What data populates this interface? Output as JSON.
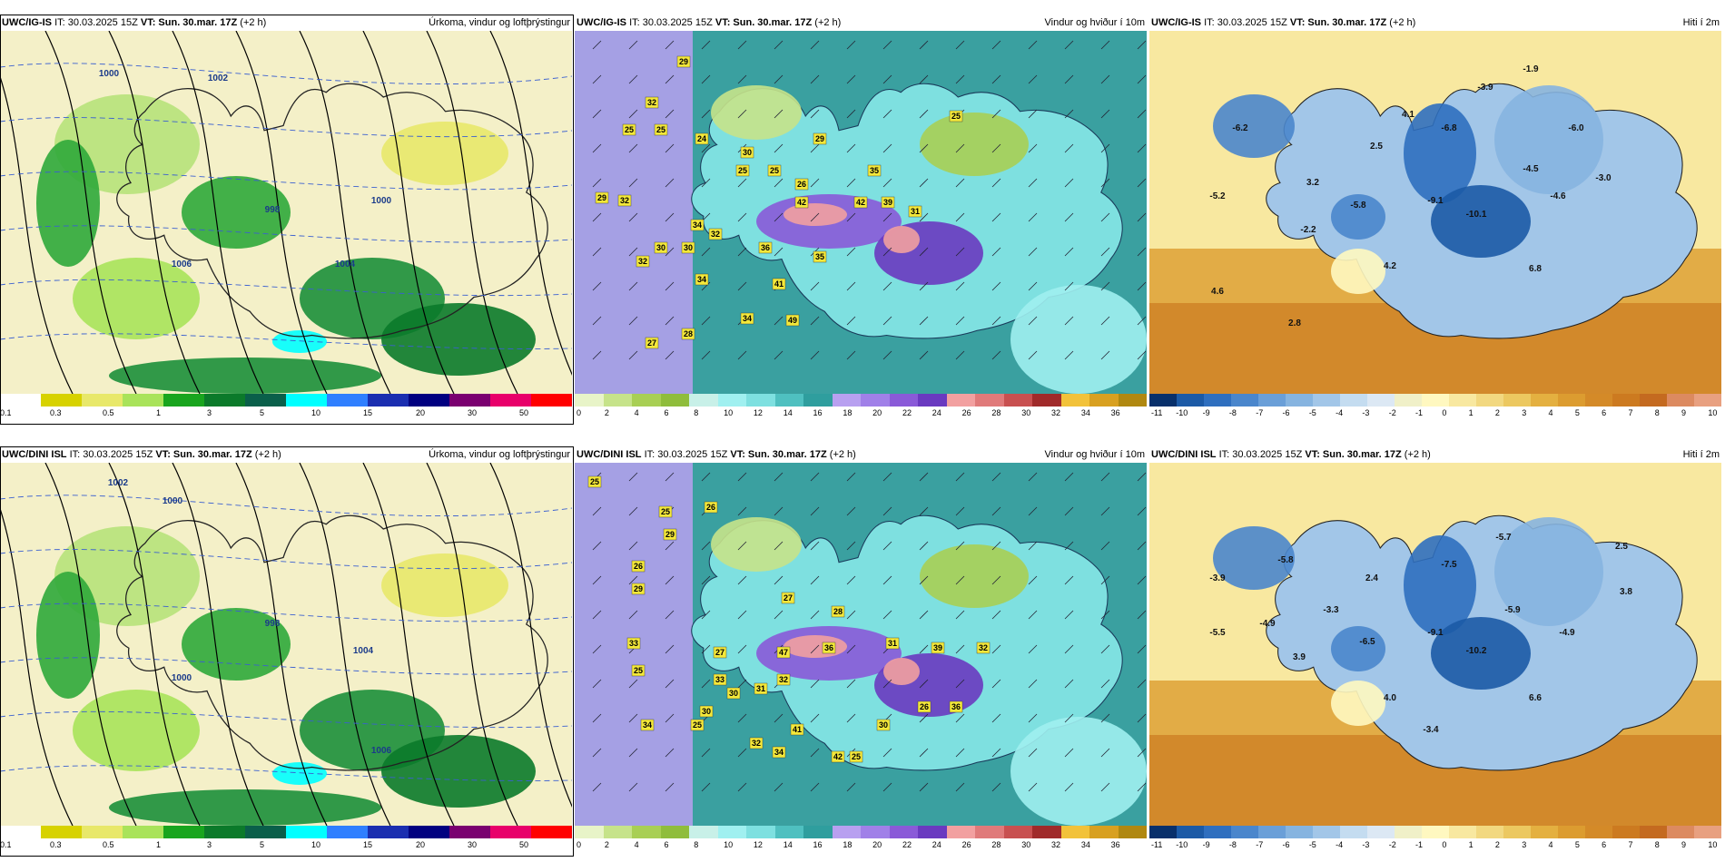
{
  "panels": [
    {
      "model": "UWC/IG-IS",
      "it": "IT: 30.03.2025 15Z",
      "vt": "VT: Sun. 30.mar. 17Z",
      "offset": "(+2 h)",
      "field": "Úrkoma, vindur og loftþrýstingur",
      "type": "precip",
      "scale": [
        "0.1",
        "0.3",
        "0.5",
        "1",
        "3",
        "5",
        "10",
        "15",
        "20",
        "30",
        "50"
      ],
      "labels": [
        {
          "t": "1000"
        },
        {
          "t": "1002"
        },
        {
          "t": "998"
        },
        {
          "t": "1000"
        },
        {
          "t": "1004"
        },
        {
          "t": "1006"
        }
      ]
    },
    {
      "model": "UWC/IG-IS",
      "it": "IT: 30.03.2025 15Z",
      "vt": "VT: Sun. 30.mar. 17Z",
      "offset": "(+2 h)",
      "field": "Vindur og hviður í 10m",
      "type": "wind",
      "scale": [
        "0",
        "2",
        "4",
        "6",
        "8",
        "10",
        "12",
        "14",
        "16",
        "18",
        "20",
        "22",
        "24",
        "26",
        "28",
        "30",
        "32",
        "34",
        "36"
      ],
      "labels": [
        {
          "t": "29"
        },
        {
          "t": "32"
        },
        {
          "t": "25"
        },
        {
          "t": "25"
        },
        {
          "t": "24"
        },
        {
          "t": "30"
        },
        {
          "t": "29"
        },
        {
          "t": "25"
        },
        {
          "t": "25"
        },
        {
          "t": "35"
        },
        {
          "t": "42"
        },
        {
          "t": "42"
        },
        {
          "t": "39"
        },
        {
          "t": "31"
        },
        {
          "t": "29"
        },
        {
          "t": "32"
        },
        {
          "t": "34"
        },
        {
          "t": "32"
        },
        {
          "t": "30"
        },
        {
          "t": "30"
        },
        {
          "t": "36"
        },
        {
          "t": "35"
        },
        {
          "t": "32"
        },
        {
          "t": "34"
        },
        {
          "t": "41"
        },
        {
          "t": "34"
        },
        {
          "t": "49"
        },
        {
          "t": "28"
        },
        {
          "t": "27"
        },
        {
          "t": "26"
        },
        {
          "t": "25"
        }
      ]
    },
    {
      "model": "UWC/IG-IS",
      "it": "IT: 30.03.2025 15Z",
      "vt": "VT: Sun. 30.mar. 17Z",
      "offset": "(+2 h)",
      "field": "Hiti í 2m",
      "type": "temp",
      "scale": [
        "-11",
        "-10",
        "-9",
        "-8",
        "-7",
        "-6",
        "-5",
        "-4",
        "-3",
        "-2",
        "-1",
        "0",
        "1",
        "2",
        "3",
        "4",
        "5",
        "6",
        "7",
        "8",
        "9",
        "10"
      ],
      "labels": [
        {
          "t": "-6.2"
        },
        {
          "t": "4.1"
        },
        {
          "t": "-6.8"
        },
        {
          "t": "-3.9"
        },
        {
          "t": "-1.9"
        },
        {
          "t": "2.5"
        },
        {
          "t": "-6.0"
        },
        {
          "t": "-4.5"
        },
        {
          "t": "-3.0"
        },
        {
          "t": "3.2"
        },
        {
          "t": "-5.2"
        },
        {
          "t": "-5.8"
        },
        {
          "t": "-9.1"
        },
        {
          "t": "-10.1"
        },
        {
          "t": "-4.6"
        },
        {
          "t": "-2.2"
        },
        {
          "t": "4.2"
        },
        {
          "t": "6.8"
        },
        {
          "t": "4.6"
        },
        {
          "t": "2.8"
        }
      ]
    },
    {
      "model": "UWC/DINI ISL",
      "it": "IT: 30.03.2025 15Z",
      "vt": "VT: Sun. 30.mar. 17Z",
      "offset": "(+2 h)",
      "field": "Úrkoma, vindur og loftþrýstingur",
      "type": "precip",
      "scale": [
        "0.1",
        "0.3",
        "0.5",
        "1",
        "3",
        "5",
        "10",
        "15",
        "20",
        "30",
        "50"
      ],
      "labels": [
        {
          "t": "1002"
        },
        {
          "t": "1000"
        },
        {
          "t": "998"
        },
        {
          "t": "1004"
        },
        {
          "t": "1006"
        },
        {
          "t": "1000"
        }
      ]
    },
    {
      "model": "UWC/DINI ISL",
      "it": "IT: 30.03.2025 15Z",
      "vt": "VT: Sun. 30.mar. 17Z",
      "offset": "(+2 h)",
      "field": "Vindur og hviður í 10m",
      "type": "wind",
      "scale": [
        "0",
        "2",
        "4",
        "6",
        "8",
        "10",
        "12",
        "14",
        "16",
        "18",
        "20",
        "22",
        "24",
        "26",
        "28",
        "30",
        "32",
        "34",
        "36"
      ],
      "labels": [
        {
          "t": "25"
        },
        {
          "t": "25"
        },
        {
          "t": "26"
        },
        {
          "t": "29"
        },
        {
          "t": "26"
        },
        {
          "t": "29"
        },
        {
          "t": "27"
        },
        {
          "t": "28"
        },
        {
          "t": "33"
        },
        {
          "t": "25"
        },
        {
          "t": "27"
        },
        {
          "t": "47"
        },
        {
          "t": "36"
        },
        {
          "t": "31"
        },
        {
          "t": "39"
        },
        {
          "t": "32"
        },
        {
          "t": "33"
        },
        {
          "t": "30"
        },
        {
          "t": "31"
        },
        {
          "t": "32"
        },
        {
          "t": "30"
        },
        {
          "t": "34"
        },
        {
          "t": "25"
        },
        {
          "t": "41"
        },
        {
          "t": "36"
        },
        {
          "t": "26"
        },
        {
          "t": "30"
        },
        {
          "t": "32"
        },
        {
          "t": "34"
        },
        {
          "t": "42"
        },
        {
          "t": "25"
        }
      ]
    },
    {
      "model": "UWC/DINI ISL",
      "it": "IT: 30.03.2025 15Z",
      "vt": "VT: Sun. 30.mar. 17Z",
      "offset": "(+2 h)",
      "field": "Hiti í 2m",
      "type": "temp",
      "scale": [
        "-11",
        "-10",
        "-9",
        "-8",
        "-7",
        "-6",
        "-5",
        "-4",
        "-3",
        "-2",
        "-1",
        "0",
        "1",
        "2",
        "3",
        "4",
        "5",
        "6",
        "7",
        "8",
        "9",
        "10"
      ],
      "labels": [
        {
          "t": "-5.8"
        },
        {
          "t": "-3.9"
        },
        {
          "t": "2.4"
        },
        {
          "t": "-7.5"
        },
        {
          "t": "-5.7"
        },
        {
          "t": "2.5"
        },
        {
          "t": "3.8"
        },
        {
          "t": "-3.3"
        },
        {
          "t": "-5.9"
        },
        {
          "t": "-4.9"
        },
        {
          "t": "-5.5"
        },
        {
          "t": "-6.5"
        },
        {
          "t": "-9.1"
        },
        {
          "t": "-10.2"
        },
        {
          "t": "-4.9"
        },
        {
          "t": "3.9"
        },
        {
          "t": "4.0"
        },
        {
          "t": "6.6"
        },
        {
          "t": "-3.4"
        }
      ]
    }
  ],
  "colors": {
    "precip": [
      "#ffffff",
      "#d7d200",
      "#e8e86a",
      "#a9e35a",
      "#19a51e",
      "#0b7a2a",
      "#0a5f4a",
      "#00ffff",
      "#2f7fff",
      "#1a2eb0",
      "#000080",
      "#7a0070",
      "#e8006a",
      "#ff0000"
    ],
    "wind": [
      "#e8f4c8",
      "#c6e38a",
      "#a8cf54",
      "#8fbd3c",
      "#c8f0e8",
      "#a0f0f0",
      "#7ee0e0",
      "#4fc0c0",
      "#2f9e9e",
      "#b8a0f0",
      "#a080e8",
      "#8a5ad8",
      "#6a3ac0",
      "#f2a0a0",
      "#e07a7a",
      "#c85050",
      "#a02a2a",
      "#f2c23a",
      "#d8a020",
      "#b08810"
    ],
    "temp": [
      "#08306b",
      "#1c5aa6",
      "#2f6fbf",
      "#4a86cc",
      "#6a9fd8",
      "#86b4e0",
      "#a2c6e8",
      "#c4dcf0",
      "#dce8f4",
      "#f0f0c8",
      "#fff8c0",
      "#f8e8a0",
      "#f2d880",
      "#ecc860",
      "#e4b040",
      "#dc9c30",
      "#d48a28",
      "#cc7a20",
      "#c46a20",
      "#dc8a60",
      "#e8a080"
    ]
  }
}
